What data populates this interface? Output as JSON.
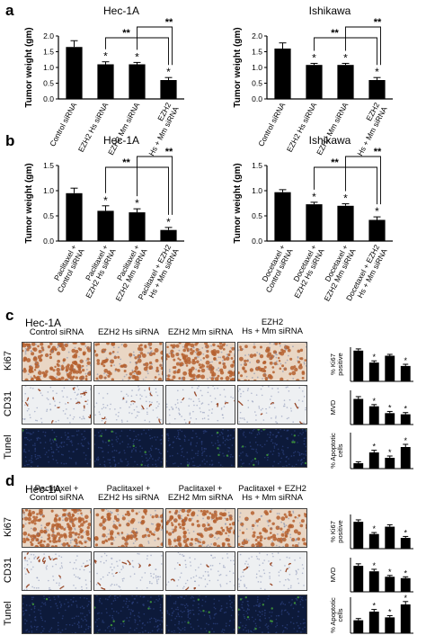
{
  "panel_labels": {
    "a": "a",
    "b": "b",
    "c": "c",
    "d": "d"
  },
  "chart_data": [
    {
      "id": "a-hec",
      "type": "bar",
      "title": "Hec-1A",
      "ylabel": "Tumor weight (gm)",
      "ylim": [
        0,
        2.0
      ],
      "yticks": [
        "0.0",
        "0.5",
        "1.0",
        "1.5",
        "2.0"
      ],
      "categories": [
        "Control siRNA",
        "EZH2 Hs siRNA",
        "EZH2 Mm siRNA",
        "EZH2\nHs + Mm siRNA"
      ],
      "values": [
        1.65,
        1.1,
        1.1,
        0.6
      ],
      "errors": [
        0.2,
        0.08,
        0.06,
        0.08
      ],
      "stars": [
        "",
        "*",
        "*",
        "*"
      ],
      "brackets": [
        "**",
        "**"
      ]
    },
    {
      "id": "a-ish",
      "type": "bar",
      "title": "Ishikawa",
      "ylabel": "Tumor weight (gm)",
      "ylim": [
        0,
        2.0
      ],
      "yticks": [
        "0.0",
        "0.5",
        "1.0",
        "1.5",
        "2.0"
      ],
      "categories": [
        "Control siRNA",
        "EZH2 Hs siRNA",
        "EZH2 Mm siRNA",
        "EZH2\nHs + Mm siRNA"
      ],
      "values": [
        1.6,
        1.08,
        1.08,
        0.6
      ],
      "errors": [
        0.18,
        0.05,
        0.05,
        0.08
      ],
      "stars": [
        "",
        "*",
        "*",
        "*"
      ],
      "brackets": [
        "**",
        "**"
      ]
    },
    {
      "id": "b-hec",
      "type": "bar",
      "title": "Hec-1A",
      "ylabel": "Tumor weight (gm)",
      "ylim": [
        0,
        1.5
      ],
      "yticks": [
        "0.0",
        "0.5",
        "1.0",
        "1.5"
      ],
      "categories": [
        "Paclitaxel +\nControl siRNA",
        "Paclitaxel +\nEZH2 Hs siRNA",
        "Paclitaxel +\nEZH2 Mm siRNA",
        "Paclitaxel + EZH2\nHs + Mm siRNA"
      ],
      "values": [
        0.95,
        0.6,
        0.57,
        0.22
      ],
      "errors": [
        0.1,
        0.1,
        0.07,
        0.05
      ],
      "stars": [
        "",
        "*",
        "*",
        "*"
      ],
      "brackets": [
        "**",
        "**"
      ]
    },
    {
      "id": "b-ish",
      "type": "bar",
      "title": "Ishikawa",
      "ylabel": "Tumor weight (gm)",
      "ylim": [
        0,
        1.5
      ],
      "yticks": [
        "0.0",
        "0.5",
        "1.0",
        "1.5"
      ],
      "categories": [
        "Docetaxel +\nControl siRNA",
        "Docetaxel +\nEZH2 Hs siRNA",
        "Docetaxel +\nEZH2 Mm siRNA",
        "Docetaxel + EZH2\nHs + Mm siRNA"
      ],
      "values": [
        0.97,
        0.73,
        0.7,
        0.42
      ],
      "errors": [
        0.05,
        0.04,
        0.04,
        0.06
      ],
      "stars": [
        "",
        "*",
        "*",
        "*"
      ],
      "brackets": [
        "**",
        "**"
      ]
    },
    {
      "id": "c-ki67",
      "type": "bar",
      "ylabel": "% Ki67\npositive",
      "values": [
        90,
        55,
        75,
        45
      ],
      "errors": [
        5,
        5,
        4,
        5
      ],
      "stars": [
        "",
        "*",
        "",
        "*"
      ],
      "ylim": [
        0,
        100
      ]
    },
    {
      "id": "c-cd31",
      "type": "bar",
      "ylabel": "MVD",
      "values": [
        45,
        32,
        20,
        18
      ],
      "errors": [
        4,
        3,
        3,
        3
      ],
      "stars": [
        "",
        "*",
        "*",
        "*"
      ],
      "ylim": [
        0,
        60
      ]
    },
    {
      "id": "c-tunel",
      "type": "bar",
      "ylabel": "% Apoptotic\ncells",
      "values": [
        3,
        9,
        6,
        12
      ],
      "errors": [
        0.8,
        1.2,
        1,
        1.5
      ],
      "stars": [
        "",
        "*",
        "*",
        "*"
      ],
      "ylim": [
        0,
        20
      ]
    },
    {
      "id": "d-ki67",
      "type": "bar",
      "ylabel": "% Ki67\npositive",
      "values": [
        55,
        30,
        45,
        22
      ],
      "errors": [
        4,
        3,
        4,
        3
      ],
      "stars": [
        "",
        "*",
        "",
        "*"
      ],
      "ylim": [
        0,
        70
      ]
    },
    {
      "id": "d-cd31",
      "type": "bar",
      "ylabel": "MVD",
      "values": [
        38,
        30,
        22,
        20
      ],
      "errors": [
        3,
        3,
        2,
        2
      ],
      "stars": [
        "",
        "*",
        "*",
        "*"
      ],
      "ylim": [
        0,
        50
      ]
    },
    {
      "id": "d-tunel",
      "type": "bar",
      "ylabel": "% Apoptotic\ncells",
      "values": [
        9,
        15,
        11,
        20
      ],
      "errors": [
        1.2,
        1.5,
        1.2,
        2
      ],
      "stars": [
        "",
        "*",
        "*",
        "*"
      ],
      "ylim": [
        0,
        25
      ]
    }
  ],
  "micro": {
    "c": {
      "title": "Hec-1A",
      "columns": [
        "Control siRNA",
        "EZH2 Hs siRNA",
        "EZH2 Mm siRNA",
        "EZH2\nHs + Mm siRNA"
      ],
      "rows": [
        "Ki67",
        "CD31",
        "Tunel"
      ]
    },
    "d": {
      "title": "Hec-1A",
      "columns": [
        "Paclitaxel +\nControl siRNA",
        "Paclitaxel +\nEZH2 Hs siRNA",
        "Paclitaxel +\nEZH2 Mm siRNA",
        "Paclitaxel + EZH2\nHs + Mm siRNA"
      ],
      "rows": [
        "Ki67",
        "CD31",
        "Tunel"
      ]
    }
  },
  "colors": {
    "bar": "#000000",
    "ki67": "#b5602f",
    "ki67_bg": "#e9d6c4",
    "cd31_bg": "#eef0f2",
    "cd31_vessel": "#9a4a2a",
    "tunel_bg": "#0d1a3a",
    "tunel_dot": "#3a8a3a"
  }
}
